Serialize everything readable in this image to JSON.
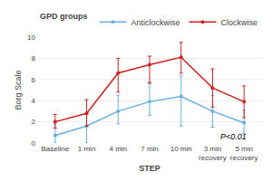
{
  "chart_data": {
    "type": "line",
    "categories": [
      "Baseline",
      "1 min",
      "4 min",
      "7 min",
      "10 min",
      "3 min\nrecovery",
      "5 min\nrecovery"
    ],
    "series": [
      {
        "name": "Anticlockwise",
        "color": "#6ab0de",
        "values": [
          0.7,
          1.6,
          3.0,
          3.9,
          4.4,
          3.0,
          1.9
        ],
        "err_low": [
          0.7,
          1.6,
          1.2,
          1.3,
          2.8,
          1.5,
          1.0
        ],
        "err_high": [
          1.1,
          1.2,
          1.5,
          1.7,
          2.0,
          1.5,
          1.2
        ]
      },
      {
        "name": "Clockwise",
        "color": "#cc2222",
        "values": [
          2.0,
          2.8,
          6.6,
          7.4,
          8.1,
          5.2,
          3.9
        ],
        "err_low": [
          0.6,
          1.2,
          1.8,
          1.7,
          1.5,
          1.8,
          1.5
        ],
        "err_high": [
          0.7,
          1.3,
          1.4,
          0.8,
          1.4,
          1.8,
          1.5
        ]
      }
    ],
    "xlabel": "STEP",
    "ylabel": "Borg Scale",
    "legend_title": "GPD groups",
    "annotation": "P<0.01",
    "ylim": [
      0,
      10
    ],
    "yticks": [
      0,
      2,
      4,
      6,
      8,
      10
    ],
    "grid": true,
    "legend": "upper right",
    "marker": "circle",
    "line_style": "solid"
  }
}
